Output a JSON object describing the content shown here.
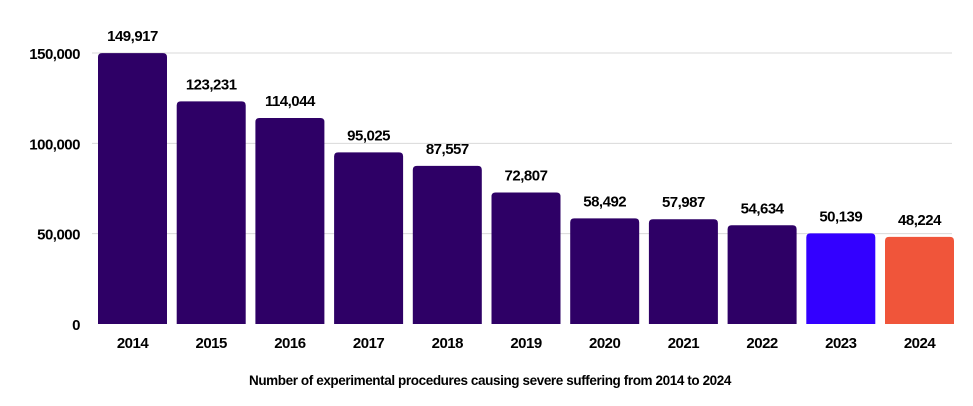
{
  "chart_data": {
    "type": "bar",
    "categories": [
      "2014",
      "2015",
      "2016",
      "2017",
      "2018",
      "2019",
      "2020",
      "2021",
      "2022",
      "2023",
      "2024"
    ],
    "values": [
      149917,
      123231,
      114044,
      95025,
      87557,
      72807,
      58492,
      57987,
      54634,
      50139,
      48224
    ],
    "value_labels": [
      "149,917",
      "123,231",
      "114,044",
      "95,025",
      "87,557",
      "72,807",
      "58,492",
      "57,987",
      "54,634",
      "50,139",
      "48,224"
    ],
    "bar_colors": [
      "#2e0066",
      "#2e0066",
      "#2e0066",
      "#2e0066",
      "#2e0066",
      "#2e0066",
      "#2e0066",
      "#2e0066",
      "#2e0066",
      "#3300ff",
      "#f0553a"
    ],
    "title": "",
    "xlabel": "Number of experimental procedures causing severe suffering from 2014 to 2024",
    "ylabel": "",
    "ylim": [
      0,
      150000
    ],
    "yticks": [
      0,
      50000,
      100000,
      150000
    ],
    "ytick_labels": [
      "0",
      "50,000",
      "100,000",
      "150,000"
    ],
    "grid": true,
    "legend": "none"
  }
}
